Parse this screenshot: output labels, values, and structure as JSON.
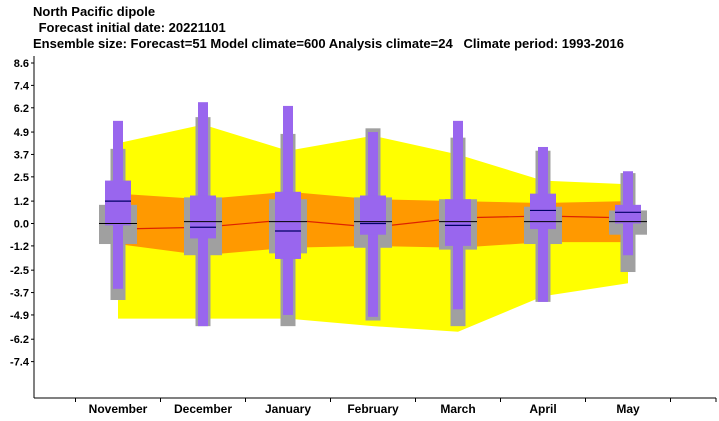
{
  "chart_data": {
    "type": "box",
    "title_lines": [
      "North Pacific dipole",
      " Forecast initial date: 20221101",
      "Ensemble size: Forecast=51 Model climate=600 Analysis climate=24   Climate period: 1993-2016"
    ],
    "categories": [
      "November",
      "December",
      "January",
      "February",
      "March",
      "April",
      "May"
    ],
    "y_ticks": [
      "8.6",
      "7.4",
      "6.2",
      "4.9",
      "3.7",
      "2.5",
      "1.2",
      "0.0",
      "-1.2",
      "-2.5",
      "-3.7",
      "-4.9",
      "-6.2",
      "-7.4"
    ],
    "ylim": [
      -8.6,
      8.6
    ],
    "grid": false,
    "analysis_climate_band": {
      "color": "#ffff00",
      "upper": [
        4.3,
        5.3,
        3.9,
        4.7,
        3.7,
        2.3,
        2.1
      ],
      "lower": [
        -5.1,
        -5.1,
        -5.1,
        -5.5,
        -5.8,
        -3.9,
        -3.2
      ]
    },
    "analysis_inner_band": {
      "color": "#ff9900",
      "upper": [
        1.6,
        1.3,
        1.7,
        1.3,
        1.2,
        1.1,
        1.2
      ],
      "lower": [
        -1.1,
        -1.7,
        -1.3,
        -1.2,
        -1.3,
        -1.0,
        -1.0
      ]
    },
    "analysis_median_line": {
      "color": "#dd2200",
      "values": [
        -0.3,
        -0.2,
        0.2,
        -0.2,
        0.3,
        0.4,
        0.3
      ]
    },
    "model_climate": {
      "color": "#a0a0a0",
      "median_color": "#000000",
      "whisker_low": [
        -4.1,
        -5.5,
        -5.5,
        -5.2,
        -5.5,
        -4.2,
        -2.6
      ],
      "outer_low": [
        -1.1,
        -1.7,
        -1.6,
        -1.3,
        -1.4,
        -1.1,
        -0.6
      ],
      "inner_low": [
        -0.6,
        -0.8,
        -0.9,
        -0.7,
        -0.8,
        -0.6,
        -0.4
      ],
      "median": [
        0.0,
        0.1,
        0.1,
        0.1,
        0.1,
        0.1,
        0.1
      ],
      "inner_high": [
        0.6,
        1.0,
        1.0,
        0.8,
        0.8,
        0.6,
        0.4
      ],
      "outer_high": [
        1.0,
        1.4,
        1.3,
        1.4,
        1.3,
        0.9,
        0.7
      ],
      "whisker_high": [
        4.0,
        5.7,
        4.8,
        5.1,
        4.6,
        3.9,
        2.7
      ]
    },
    "forecast": {
      "color": "#9966ee",
      "median_color": "#000066",
      "min": [
        -3.5,
        -5.5,
        -4.9,
        -5.0,
        -4.6,
        -4.2,
        -1.7
      ],
      "q25": [
        -0.1,
        -0.8,
        -1.9,
        -0.6,
        -1.2,
        -0.3,
        0.0
      ],
      "median": [
        1.2,
        -0.2,
        -0.4,
        0.0,
        -0.1,
        0.7,
        0.6
      ],
      "q75": [
        2.3,
        1.5,
        1.7,
        1.5,
        1.3,
        1.6,
        1.0
      ],
      "max": [
        5.5,
        6.5,
        6.3,
        4.9,
        5.5,
        4.1,
        2.8
      ]
    }
  }
}
